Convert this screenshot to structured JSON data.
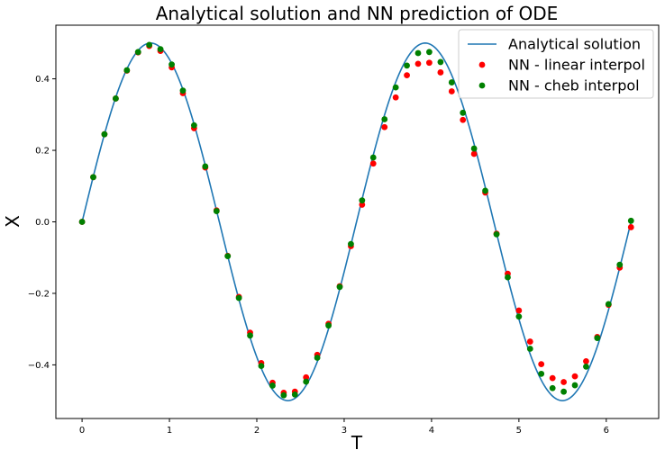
{
  "chart_data": {
    "type": "line",
    "title": "Analytical solution and NN prediction of ODE",
    "xlabel": "T",
    "ylabel": "X",
    "xlim": [
      -0.3,
      6.6
    ],
    "ylim": [
      -0.55,
      0.55
    ],
    "xticks": [
      0,
      1,
      2,
      3,
      4,
      5,
      6
    ],
    "yticks": [
      -0.4,
      -0.2,
      0.0,
      0.2,
      0.4
    ],
    "ytick_labels": [
      "−0.4",
      "−0.2",
      "0.0",
      "0.2",
      "0.4"
    ],
    "legend_position": "top-right",
    "grid": false,
    "x": [
      0.0,
      0.128,
      0.256,
      0.385,
      0.513,
      0.641,
      0.769,
      0.897,
      1.026,
      1.154,
      1.282,
      1.41,
      1.539,
      1.667,
      1.795,
      1.923,
      2.051,
      2.18,
      2.308,
      2.436,
      2.564,
      2.692,
      2.821,
      2.949,
      3.077,
      3.205,
      3.333,
      3.462,
      3.59,
      3.718,
      3.846,
      3.974,
      4.103,
      4.231,
      4.359,
      4.487,
      4.615,
      4.744,
      4.872,
      5.0,
      5.128,
      5.256,
      5.385,
      5.513,
      5.641,
      5.769,
      5.897,
      6.026,
      6.154,
      6.283
    ],
    "series": [
      {
        "name": "Analytical solution",
        "style": "line",
        "color": "#1f77b4",
        "function": "0.5*sin(2t)"
      },
      {
        "name": "NN - linear interpol",
        "style": "scatter",
        "color": "#ff0000",
        "values": [
          0.0,
          0.125,
          0.245,
          0.345,
          0.423,
          0.474,
          0.492,
          0.478,
          0.432,
          0.36,
          0.262,
          0.152,
          0.032,
          -0.095,
          -0.21,
          -0.31,
          -0.395,
          -0.45,
          -0.478,
          -0.475,
          -0.435,
          -0.372,
          -0.285,
          -0.18,
          -0.068,
          0.048,
          0.163,
          0.265,
          0.348,
          0.41,
          0.442,
          0.445,
          0.418,
          0.365,
          0.285,
          0.19,
          0.082,
          -0.033,
          -0.145,
          -0.248,
          -0.335,
          -0.398,
          -0.437,
          -0.448,
          -0.432,
          -0.39,
          -0.322,
          -0.232,
          -0.128,
          -0.015
        ]
      },
      {
        "name": "NN - cheb interpol",
        "style": "scatter",
        "color": "#008000",
        "values": [
          0.0,
          0.125,
          0.245,
          0.345,
          0.424,
          0.475,
          0.495,
          0.483,
          0.44,
          0.367,
          0.27,
          0.155,
          0.03,
          -0.096,
          -0.213,
          -0.318,
          -0.403,
          -0.458,
          -0.485,
          -0.483,
          -0.447,
          -0.38,
          -0.29,
          -0.182,
          -0.062,
          0.06,
          0.18,
          0.287,
          0.376,
          0.437,
          0.472,
          0.475,
          0.447,
          0.39,
          0.305,
          0.205,
          0.087,
          -0.035,
          -0.155,
          -0.265,
          -0.355,
          -0.425,
          -0.465,
          -0.475,
          -0.457,
          -0.405,
          -0.325,
          -0.23,
          -0.12,
          0.003
        ]
      }
    ]
  }
}
